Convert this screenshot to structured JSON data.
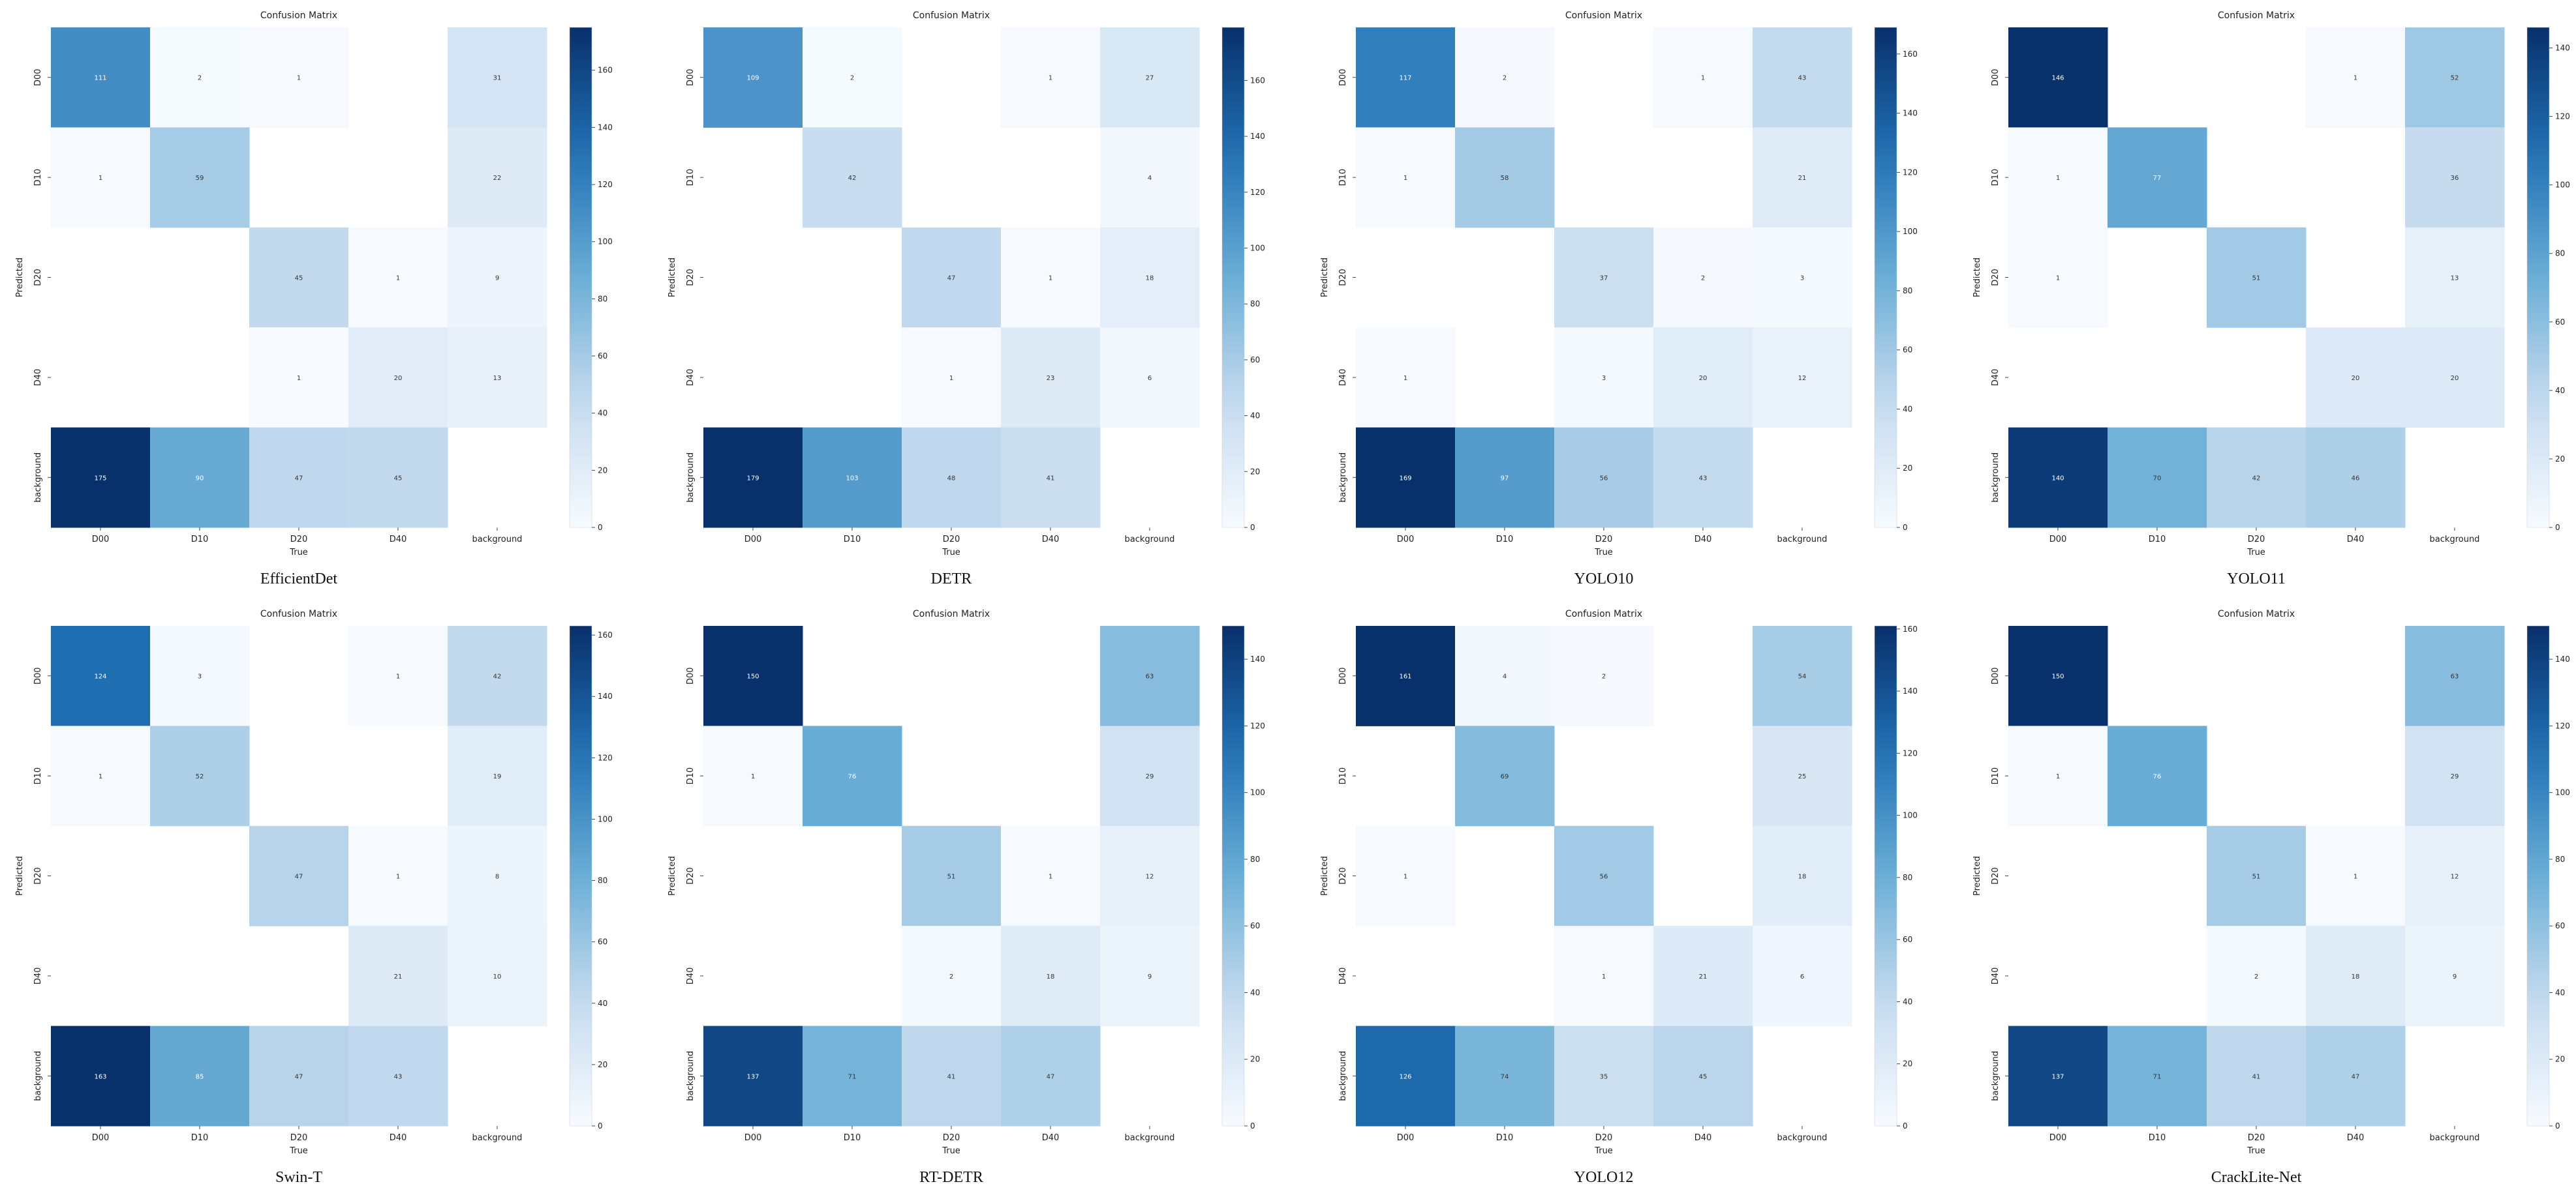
{
  "figure": {
    "panel_title": "Confusion Matrix",
    "xlabel": "True",
    "ylabel": "Predicted",
    "labels": [
      "D00",
      "D10",
      "D20",
      "D40",
      "background"
    ],
    "colormap": {
      "low": "#f7fbff",
      "mid1": "#c6dbef",
      "mid2": "#6baed6",
      "mid3": "#2171b5",
      "high": "#08306b"
    }
  },
  "chart_data": [
    {
      "type": "heatmap",
      "title": "Confusion Matrix",
      "caption": "EfficientDet",
      "xlabel": "True",
      "ylabel": "Predicted",
      "x": [
        "D00",
        "D10",
        "D20",
        "D40",
        "background"
      ],
      "y": [
        "D00",
        "D10",
        "D20",
        "D40",
        "background"
      ],
      "values": [
        [
          111,
          2,
          1,
          null,
          31
        ],
        [
          1,
          59,
          null,
          null,
          22
        ],
        [
          null,
          null,
          45,
          1,
          9
        ],
        [
          null,
          null,
          1,
          20,
          13
        ],
        [
          175,
          90,
          47,
          45,
          null
        ]
      ],
      "colorbar_range": [
        0,
        175
      ],
      "colorbar_ticks": [
        0,
        20,
        40,
        60,
        80,
        100,
        120,
        140,
        160
      ]
    },
    {
      "type": "heatmap",
      "title": "Confusion Matrix",
      "caption": "DETR",
      "xlabel": "True",
      "ylabel": "Predicted",
      "x": [
        "D00",
        "D10",
        "D20",
        "D40",
        "background"
      ],
      "y": [
        "D00",
        "D10",
        "D20",
        "D40",
        "background"
      ],
      "values": [
        [
          109,
          2,
          null,
          1,
          27
        ],
        [
          null,
          42,
          null,
          null,
          4
        ],
        [
          null,
          null,
          47,
          1,
          18
        ],
        [
          null,
          null,
          1,
          23,
          6
        ],
        [
          179,
          103,
          48,
          41,
          null
        ]
      ],
      "colorbar_range": [
        0,
        179
      ],
      "colorbar_ticks": [
        0,
        20,
        40,
        60,
        80,
        100,
        120,
        140,
        160
      ]
    },
    {
      "type": "heatmap",
      "title": "Confusion Matrix",
      "caption": "YOLO10",
      "xlabel": "True",
      "ylabel": "Predicted",
      "x": [
        "D00",
        "D10",
        "D20",
        "D40",
        "background"
      ],
      "y": [
        "D00",
        "D10",
        "D20",
        "D40",
        "background"
      ],
      "values": [
        [
          117,
          2,
          null,
          1,
          43
        ],
        [
          1,
          58,
          null,
          null,
          21
        ],
        [
          null,
          null,
          37,
          2,
          3
        ],
        [
          1,
          null,
          3,
          20,
          12
        ],
        [
          169,
          97,
          56,
          43,
          null
        ]
      ],
      "colorbar_range": [
        0,
        169
      ],
      "colorbar_ticks": [
        0,
        20,
        40,
        60,
        80,
        100,
        120,
        140,
        160
      ]
    },
    {
      "type": "heatmap",
      "title": "Confusion Matrix",
      "caption": "YOLO11",
      "xlabel": "True",
      "ylabel": "Predicted",
      "x": [
        "D00",
        "D10",
        "D20",
        "D40",
        "background"
      ],
      "y": [
        "D00",
        "D10",
        "D20",
        "D40",
        "background"
      ],
      "values": [
        [
          146,
          null,
          null,
          1,
          52
        ],
        [
          1,
          77,
          null,
          null,
          36
        ],
        [
          1,
          null,
          51,
          null,
          13
        ],
        [
          null,
          null,
          null,
          20,
          20
        ],
        [
          140,
          70,
          42,
          46,
          null
        ]
      ],
      "colorbar_range": [
        0,
        146
      ],
      "colorbar_ticks": [
        0,
        20,
        40,
        60,
        80,
        100,
        120,
        140
      ]
    },
    {
      "type": "heatmap",
      "title": "Confusion Matrix",
      "caption": "Swin-T",
      "xlabel": "True",
      "ylabel": "Predicted",
      "x": [
        "D00",
        "D10",
        "D20",
        "D40",
        "background"
      ],
      "y": [
        "D00",
        "D10",
        "D20",
        "D40",
        "background"
      ],
      "values": [
        [
          124,
          3,
          null,
          1,
          42
        ],
        [
          1,
          52,
          null,
          null,
          19
        ],
        [
          null,
          null,
          47,
          1,
          8
        ],
        [
          null,
          null,
          null,
          21,
          10
        ],
        [
          163,
          85,
          47,
          43,
          null
        ]
      ],
      "colorbar_range": [
        0,
        163
      ],
      "colorbar_ticks": [
        0,
        20,
        40,
        60,
        80,
        100,
        120,
        140,
        160
      ]
    },
    {
      "type": "heatmap",
      "title": "Confusion Matrix",
      "caption": "RT-DETR",
      "xlabel": "True",
      "ylabel": "Predicted",
      "x": [
        "D00",
        "D10",
        "D20",
        "D40",
        "background"
      ],
      "y": [
        "D00",
        "D10",
        "D20",
        "D40",
        "background"
      ],
      "values": [
        [
          150,
          null,
          null,
          null,
          63
        ],
        [
          1,
          76,
          null,
          null,
          29
        ],
        [
          null,
          null,
          51,
          1,
          12
        ],
        [
          null,
          null,
          2,
          18,
          9
        ],
        [
          137,
          71,
          41,
          47,
          null
        ]
      ],
      "colorbar_range": [
        0,
        150
      ],
      "colorbar_ticks": [
        0,
        20,
        40,
        60,
        80,
        100,
        120,
        140
      ]
    },
    {
      "type": "heatmap",
      "title": "Confusion Matrix",
      "caption": "YOLO12",
      "xlabel": "True",
      "ylabel": "Predicted",
      "x": [
        "D00",
        "D10",
        "D20",
        "D40",
        "background"
      ],
      "y": [
        "D00",
        "D10",
        "D20",
        "D40",
        "background"
      ],
      "values": [
        [
          161,
          4,
          2,
          null,
          54
        ],
        [
          null,
          69,
          null,
          null,
          25
        ],
        [
          1,
          null,
          56,
          null,
          18
        ],
        [
          null,
          null,
          1,
          21,
          6
        ],
        [
          126,
          74,
          35,
          45,
          null
        ]
      ],
      "colorbar_range": [
        0,
        161
      ],
      "colorbar_ticks": [
        0,
        20,
        40,
        60,
        80,
        100,
        120,
        140,
        160
      ]
    },
    {
      "type": "heatmap",
      "title": "Confusion Matrix",
      "caption": "CrackLite-Net",
      "xlabel": "True",
      "ylabel": "Predicted",
      "x": [
        "D00",
        "D10",
        "D20",
        "D40",
        "background"
      ],
      "y": [
        "D00",
        "D10",
        "D20",
        "D40",
        "background"
      ],
      "values": [
        [
          150,
          null,
          null,
          null,
          63
        ],
        [
          1,
          76,
          null,
          null,
          29
        ],
        [
          null,
          null,
          51,
          1,
          12
        ],
        [
          null,
          null,
          2,
          18,
          9
        ],
        [
          137,
          71,
          41,
          47,
          null
        ]
      ],
      "colorbar_range": [
        0,
        150
      ],
      "colorbar_ticks": [
        0,
        20,
        40,
        60,
        80,
        100,
        120,
        140
      ]
    }
  ]
}
